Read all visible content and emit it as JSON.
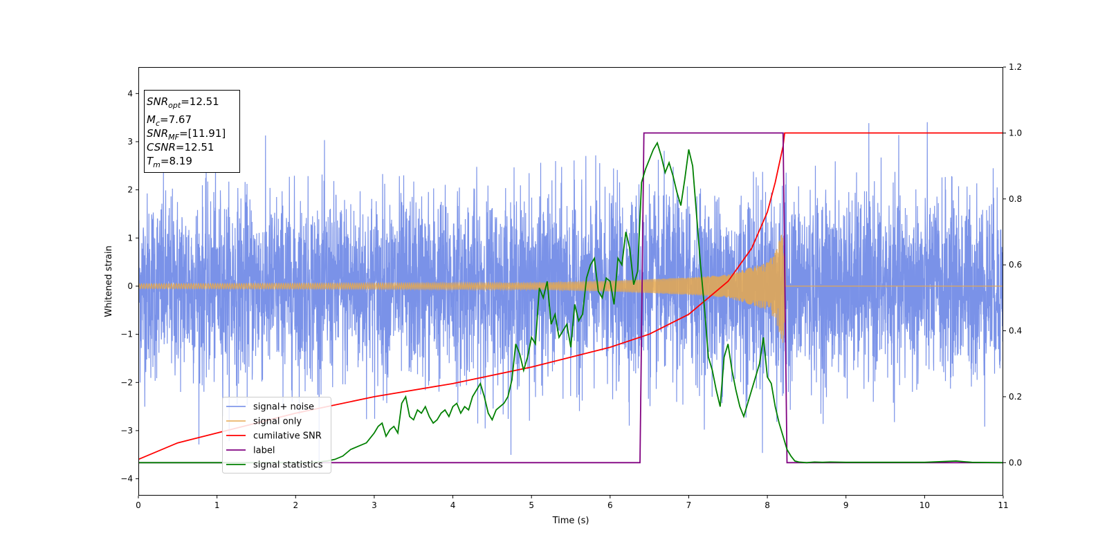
{
  "chart_data": {
    "type": "line",
    "xlabel": "Time (s)",
    "ylabel": "Whitened strain",
    "xlim": [
      0,
      11
    ],
    "ylim_left": [
      -4.35,
      4.55
    ],
    "ylim_right": [
      -0.1,
      1.2
    ],
    "x_ticks": [
      "0",
      "1",
      "2",
      "3",
      "4",
      "5",
      "6",
      "7",
      "8",
      "9",
      "10",
      "11"
    ],
    "y_left_ticks": [
      "−4",
      "−3",
      "−2",
      "−1",
      "0",
      "1",
      "2",
      "3",
      "4"
    ],
    "y_right_ticks": [
      "0.0",
      "0.2",
      "0.4",
      "0.6",
      "0.8",
      "1.0",
      "1.2"
    ],
    "legend_position": "lower-left",
    "colors": {
      "noise": "#6b86e6",
      "signal": "#e6a84d",
      "snr": "#ff0000",
      "label": "#800080",
      "stats": "#008000"
    },
    "series": [
      {
        "name": "signal+ noise",
        "axis": "left",
        "description_values": {
          "noise_sigma": 0.95,
          "peak_max": 4.18,
          "peak_min": -3.95
        }
      },
      {
        "name": "signal only",
        "axis": "left",
        "envelope": {
          "x": [
            0,
            5,
            6,
            7,
            7.5,
            8,
            8.1,
            8.2,
            8.25,
            11
          ],
          "amplitude": [
            0.05,
            0.07,
            0.11,
            0.18,
            0.24,
            0.5,
            0.7,
            1.2,
            0,
            0
          ]
        }
      },
      {
        "name": "cumilative SNR",
        "axis": "right",
        "x": [
          0,
          0.5,
          1,
          2,
          3,
          4,
          5,
          6,
          6.5,
          7,
          7.5,
          7.8,
          8,
          8.1,
          8.2,
          8.22,
          11
        ],
        "values": [
          0.01,
          0.06,
          0.09,
          0.15,
          0.2,
          0.24,
          0.29,
          0.35,
          0.39,
          0.45,
          0.55,
          0.65,
          0.76,
          0.85,
          0.96,
          1.0,
          1.0
        ]
      },
      {
        "name": "label",
        "axis": "right",
        "x": [
          0,
          6.38,
          6.43,
          8.2,
          8.25,
          11
        ],
        "values": [
          0,
          0,
          1,
          1,
          0,
          0
        ]
      },
      {
        "name": "signal statistics",
        "axis": "right",
        "x": [
          0,
          2.2,
          2.4,
          2.5,
          2.6,
          2.7,
          2.8,
          2.9,
          3.0,
          3.05,
          3.1,
          3.15,
          3.2,
          3.25,
          3.3,
          3.35,
          3.4,
          3.45,
          3.5,
          3.55,
          3.6,
          3.65,
          3.7,
          3.75,
          3.8,
          3.85,
          3.9,
          3.95,
          4.0,
          4.05,
          4.1,
          4.15,
          4.2,
          4.25,
          4.3,
          4.35,
          4.4,
          4.45,
          4.5,
          4.55,
          4.6,
          4.65,
          4.7,
          4.75,
          4.8,
          4.85,
          4.9,
          4.95,
          5.0,
          5.05,
          5.1,
          5.15,
          5.2,
          5.25,
          5.3,
          5.35,
          5.4,
          5.45,
          5.5,
          5.55,
          5.6,
          5.65,
          5.7,
          5.75,
          5.8,
          5.85,
          5.9,
          5.95,
          6.0,
          6.05,
          6.1,
          6.15,
          6.2,
          6.25,
          6.3,
          6.35,
          6.4,
          6.45,
          6.5,
          6.55,
          6.6,
          6.65,
          6.7,
          6.75,
          6.8,
          6.85,
          6.9,
          6.95,
          7.0,
          7.05,
          7.1,
          7.15,
          7.2,
          7.25,
          7.3,
          7.35,
          7.4,
          7.45,
          7.5,
          7.55,
          7.6,
          7.65,
          7.7,
          7.75,
          7.8,
          7.85,
          7.9,
          7.95,
          8.0,
          8.05,
          8.1,
          8.15,
          8.2,
          8.25,
          8.3,
          8.35,
          8.4,
          8.5,
          8.6,
          8.7,
          8.8,
          9.0,
          9.5,
          10.0,
          10.4,
          10.5,
          10.6,
          11.0
        ],
        "values": [
          0,
          0,
          0.005,
          0.01,
          0.02,
          0.04,
          0.05,
          0.06,
          0.09,
          0.11,
          0.12,
          0.08,
          0.1,
          0.11,
          0.09,
          0.18,
          0.2,
          0.14,
          0.13,
          0.16,
          0.15,
          0.17,
          0.14,
          0.12,
          0.13,
          0.15,
          0.16,
          0.14,
          0.17,
          0.18,
          0.15,
          0.17,
          0.16,
          0.2,
          0.22,
          0.24,
          0.2,
          0.15,
          0.13,
          0.16,
          0.17,
          0.18,
          0.2,
          0.25,
          0.36,
          0.33,
          0.28,
          0.32,
          0.38,
          0.36,
          0.53,
          0.5,
          0.55,
          0.42,
          0.45,
          0.38,
          0.4,
          0.42,
          0.35,
          0.48,
          0.43,
          0.45,
          0.56,
          0.6,
          0.62,
          0.52,
          0.5,
          0.56,
          0.55,
          0.48,
          0.62,
          0.6,
          0.7,
          0.65,
          0.54,
          0.58,
          0.85,
          0.89,
          0.92,
          0.95,
          0.97,
          0.93,
          0.88,
          0.91,
          0.87,
          0.82,
          0.78,
          0.86,
          0.95,
          0.9,
          0.75,
          0.6,
          0.47,
          0.32,
          0.28,
          0.22,
          0.17,
          0.32,
          0.36,
          0.28,
          0.22,
          0.17,
          0.14,
          0.18,
          0.22,
          0.26,
          0.3,
          0.38,
          0.26,
          0.24,
          0.17,
          0.12,
          0.08,
          0.04,
          0.02,
          0.005,
          0.002,
          0,
          0.002,
          0.001,
          0.002,
          0.001,
          0.001,
          0.001,
          0.005,
          0.003,
          0.001,
          0
        ]
      }
    ]
  },
  "annotation": {
    "snr_opt_label": "SNR",
    "snr_opt_sub": "opt",
    "snr_opt_value": "=12.51",
    "mc_label": "M",
    "mc_sub": "c",
    "mc_value": "=7.67",
    "snr_mf_label": "SNR",
    "snr_mf_sub": "MF",
    "snr_mf_value": "=[11.91]",
    "csnr_label": "CSNR",
    "csnr_value": "=12.51",
    "tm_label": "T",
    "tm_sub": "m",
    "tm_value": "=8.19"
  }
}
